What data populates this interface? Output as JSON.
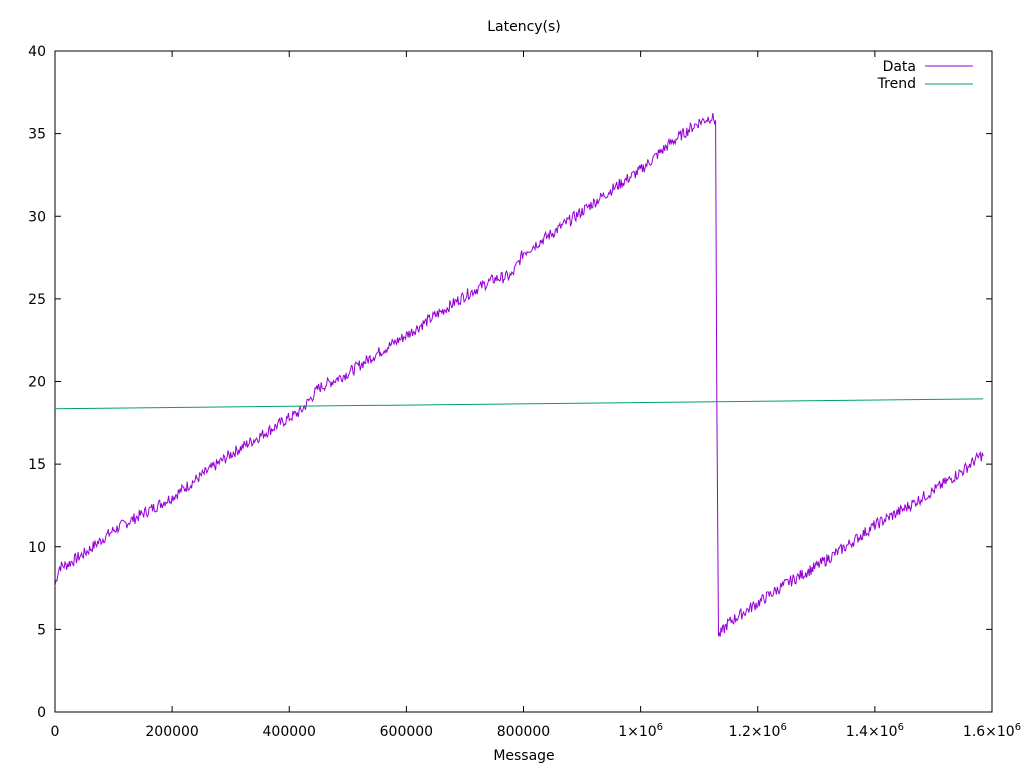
{
  "chart_data": {
    "type": "line",
    "title": "Latency(s)",
    "xlabel": "Message",
    "ylabel": "",
    "xlim": [
      0,
      1600000
    ],
    "ylim": [
      0,
      40
    ],
    "grid": false,
    "legend_position": "top-right",
    "x_ticks": [
      {
        "value": 0,
        "label": "0"
      },
      {
        "value": 200000,
        "label": "200000"
      },
      {
        "value": 400000,
        "label": "400000"
      },
      {
        "value": 600000,
        "label": "600000"
      },
      {
        "value": 800000,
        "label": "800000"
      },
      {
        "value": 1000000,
        "label": "1×10",
        "exp": "6"
      },
      {
        "value": 1200000,
        "label": "1.2×10",
        "exp": "6"
      },
      {
        "value": 1400000,
        "label": "1.4×10",
        "exp": "6"
      },
      {
        "value": 1600000,
        "label": "1.6×10",
        "exp": "6"
      }
    ],
    "y_ticks": [
      0,
      5,
      10,
      15,
      20,
      25,
      30,
      35,
      40
    ],
    "series": [
      {
        "name": "Data",
        "color": "#9400d3",
        "x": [
          0,
          3000,
          8000,
          20000,
          50000,
          100000,
          150000,
          200000,
          250000,
          300000,
          350000,
          400000,
          420000,
          450000,
          500000,
          550000,
          600000,
          650000,
          700000,
          750000,
          780000,
          800000,
          850000,
          900000,
          950000,
          1000000,
          1050000,
          1100000,
          1120000,
          1128000,
          1130000,
          1133000,
          1140000,
          1150000,
          1200000,
          1250000,
          1300000,
          1350000,
          1400000,
          1450000,
          1500000,
          1550000,
          1580000,
          1585000
        ],
        "y": [
          7.6,
          8.2,
          8.8,
          8.9,
          9.6,
          11.0,
          12.0,
          13.0,
          14.3,
          15.6,
          16.7,
          17.8,
          18.2,
          19.6,
          20.5,
          21.7,
          22.8,
          24.0,
          25.2,
          26.2,
          26.4,
          27.8,
          29.0,
          30.3,
          31.6,
          32.8,
          34.4,
          35.7,
          36.0,
          35.8,
          19.0,
          4.6,
          4.9,
          5.4,
          6.6,
          7.8,
          8.8,
          10.0,
          11.3,
          12.3,
          13.4,
          14.6,
          15.5,
          15.5
        ],
        "noise_amplitude": 0.35
      },
      {
        "name": "Trend",
        "color": "#009e73",
        "x": [
          0,
          1585000
        ],
        "y": [
          18.35,
          18.95
        ]
      }
    ]
  }
}
